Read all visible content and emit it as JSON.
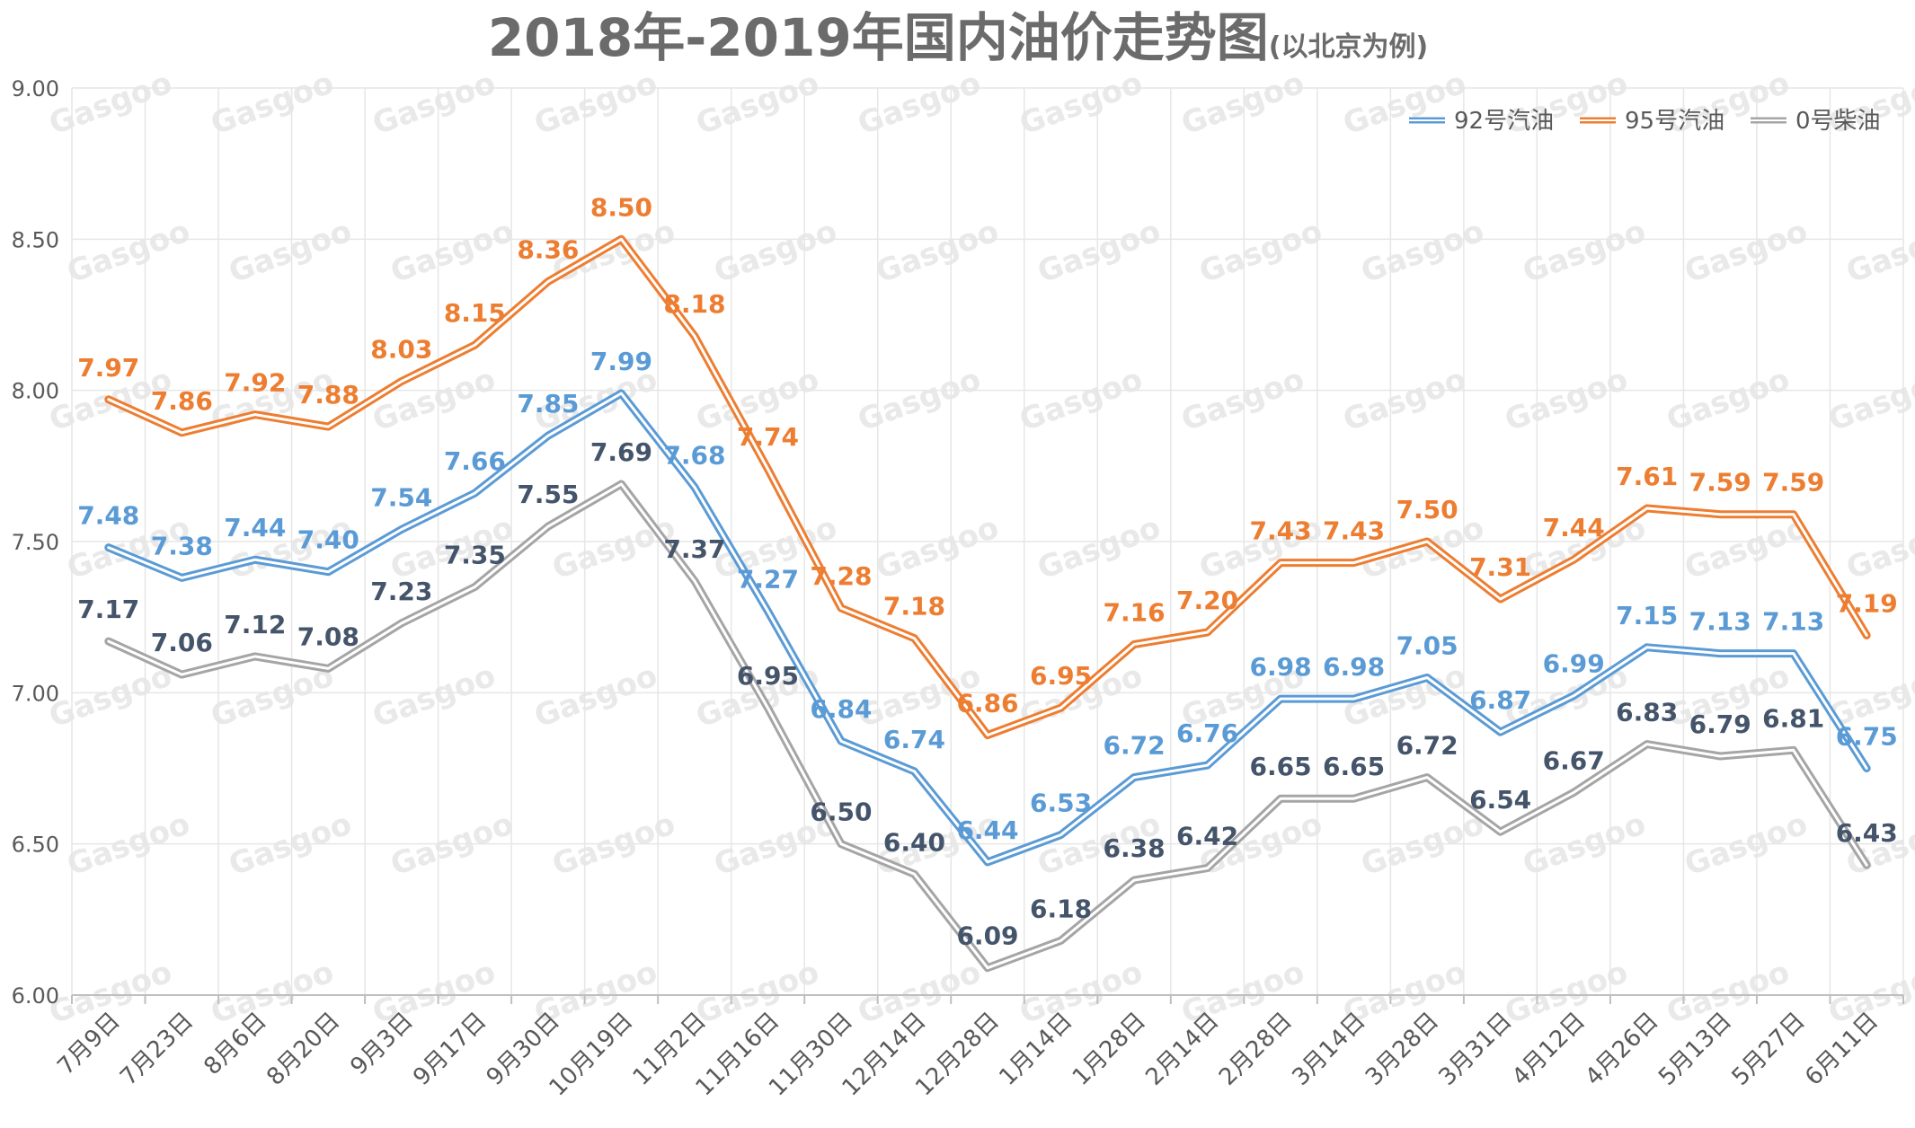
{
  "title": {
    "main": "2018年-2019年国内油价走势图",
    "sub": "(以北京为例)"
  },
  "colors": {
    "series_92": "#5b9bd5",
    "series_95": "#ed7d31",
    "series_0": "#a5a5a5",
    "label_92": "#5b9bd5",
    "label_95": "#ed7d31",
    "label_0": "#44546a",
    "grid": "#e6e6e6",
    "axis": "#bfbfbf",
    "title": "#6b6b6b"
  },
  "watermark": "Gasgoo",
  "chart_data": {
    "type": "line",
    "categories": [
      "7月9日",
      "7月23日",
      "8月6日",
      "8月20日",
      "9月3日",
      "9月17日",
      "9月30日",
      "10月19日",
      "11月2日",
      "11月16日",
      "11月30日",
      "12月14日",
      "12月28日",
      "1月14日",
      "1月28日",
      "2月14日",
      "2月28日",
      "3月14日",
      "3月28日",
      "3月31日",
      "4月12日",
      "4月26日",
      "5月13日",
      "5月27日",
      "6月11日"
    ],
    "ylim": [
      6.0,
      9.0
    ],
    "yticks": [
      "6.00",
      "6.50",
      "7.00",
      "7.50",
      "8.00",
      "8.50",
      "9.00"
    ],
    "grid": true,
    "legend_position": "top-right",
    "series": [
      {
        "name": "92号汽油",
        "values": [
          7.48,
          7.38,
          7.44,
          7.4,
          7.54,
          7.66,
          7.85,
          7.99,
          7.68,
          7.27,
          6.84,
          6.74,
          6.44,
          6.53,
          6.72,
          6.76,
          6.98,
          6.98,
          7.05,
          6.87,
          6.99,
          7.15,
          7.13,
          7.13,
          6.75
        ],
        "labels": [
          "7.48",
          "7.38",
          "7.44",
          "7.40",
          "7.54",
          "7.66",
          "7.85",
          "7.99",
          "7.68",
          "7.27",
          "6.84",
          "6.74",
          "6.44",
          "6.53",
          "6.72",
          "6.76",
          "6.98",
          "6.98",
          "7.05",
          "6.87",
          "6.99",
          "7.15",
          "7.13",
          "7.13",
          "6.75"
        ]
      },
      {
        "name": "95号汽油",
        "values": [
          7.97,
          7.86,
          7.92,
          7.88,
          8.03,
          8.15,
          8.36,
          8.5,
          8.18,
          7.74,
          7.28,
          7.18,
          6.86,
          6.95,
          7.16,
          7.2,
          7.43,
          7.43,
          7.5,
          7.31,
          7.44,
          7.61,
          7.59,
          7.59,
          7.19
        ],
        "labels": [
          "7.97",
          "7.86",
          "7.92",
          "7.88",
          "8.03",
          "8.15",
          "8.36",
          "8.50",
          "8.18",
          "7.74",
          "7.28",
          "7.18",
          "6.86",
          "6.95",
          "7.16",
          "7.20",
          "7.43",
          "7.43",
          "7.50",
          "7.31",
          "7.44",
          "7.61",
          "7.59",
          "7.59",
          "7.19"
        ]
      },
      {
        "name": "0号柴油",
        "values": [
          7.17,
          7.06,
          7.12,
          7.08,
          7.23,
          7.35,
          7.55,
          7.69,
          7.37,
          6.95,
          6.5,
          6.4,
          6.09,
          6.18,
          6.38,
          6.42,
          6.65,
          6.65,
          6.72,
          6.54,
          6.67,
          6.83,
          6.79,
          6.81,
          6.43
        ],
        "labels": [
          "7.17",
          "7.06",
          "7.12",
          "7.08",
          "7.23",
          "7.35",
          "7.55",
          "7.69",
          "7.37",
          "6.95",
          "6.50",
          "6.40",
          "6.09",
          "6.18",
          "6.38",
          "6.42",
          "6.65",
          "6.65",
          "6.72",
          "6.54",
          "6.67",
          "6.83",
          "6.79",
          "6.81",
          "6.43"
        ]
      }
    ]
  }
}
